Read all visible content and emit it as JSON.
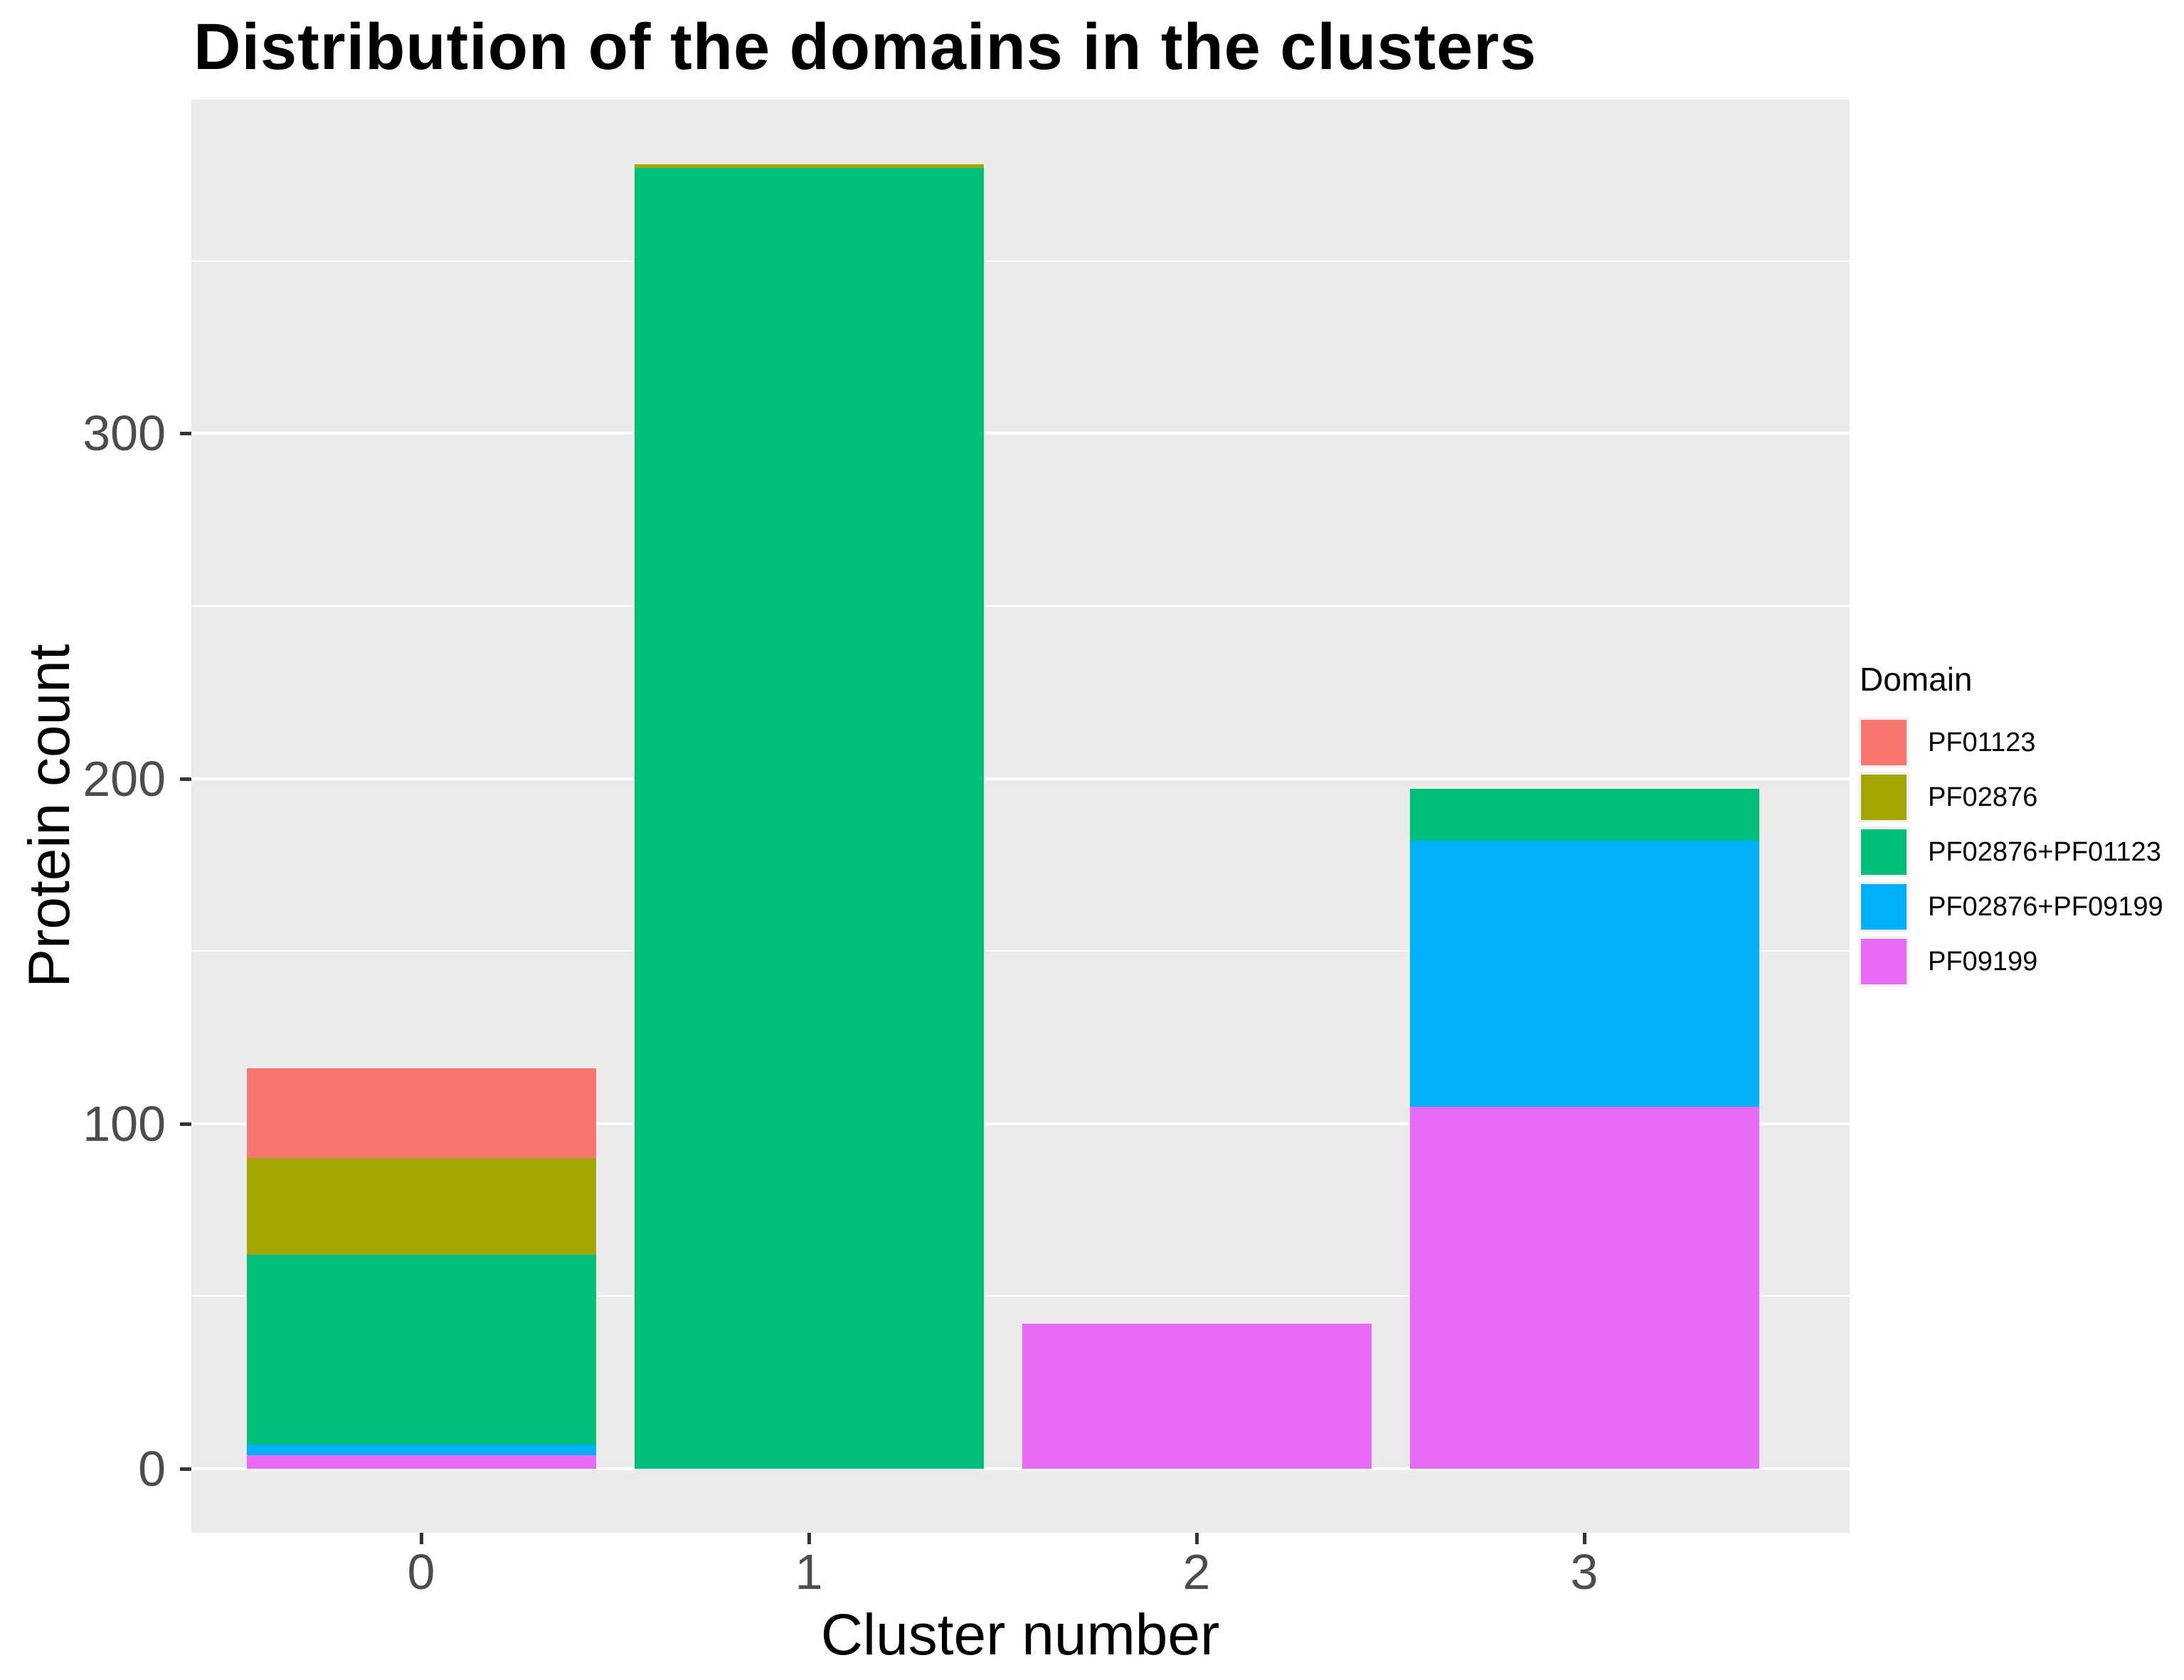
{
  "title": "Distribution of the domains in the clusters",
  "axes": {
    "x_label": "Cluster number",
    "y_label": "Protein count",
    "x_tick_labels": [
      "0",
      "1",
      "2",
      "3"
    ],
    "y_tick_labels": [
      "0",
      "100",
      "200",
      "300"
    ]
  },
  "legend": {
    "title": "Domain",
    "entries": [
      {
        "label": "PF01123",
        "color": "#F8766D"
      },
      {
        "label": "PF02876",
        "color": "#A3A500"
      },
      {
        "label": "PF02876+PF01123",
        "color": "#00BF7D"
      },
      {
        "label": "PF02876+PF09199",
        "color": "#00B0F6"
      },
      {
        "label": "PF09199",
        "color": "#E76BF3"
      }
    ],
    "position": "right"
  },
  "colors": {
    "background": "#FFFFFF",
    "panel_background": "#EBEBEB",
    "gridline": "#FFFFFF",
    "tick_label_text": "#4D4D4D",
    "axis_title_text": "#000000",
    "tick_mark": "#333333",
    "legend_key_background": "#F2F2F2"
  },
  "chart_data": {
    "type": "bar",
    "stacked": true,
    "stack_order": "first listed series appears on top of the stack",
    "title": "Distribution of the domains in the clusters",
    "xlabel": "Cluster number",
    "ylabel": "Protein count",
    "categories": [
      "0",
      "1",
      "2",
      "3"
    ],
    "series": [
      {
        "name": "PF01123",
        "color": "#F8766D",
        "values": [
          26,
          0,
          0,
          0
        ]
      },
      {
        "name": "PF02876",
        "color": "#A3A500",
        "values": [
          28,
          1,
          0,
          0
        ]
      },
      {
        "name": "PF02876+PF01123",
        "color": "#00BF7D",
        "values": [
          55,
          377,
          0,
          15
        ]
      },
      {
        "name": "PF02876+PF09199",
        "color": "#00B0F6",
        "values": [
          3,
          0,
          0,
          77
        ]
      },
      {
        "name": "PF09199",
        "color": "#E76BF3",
        "values": [
          4,
          0,
          42,
          105
        ]
      }
    ],
    "totals": [
      116,
      378,
      42,
      197
    ],
    "y_ticks": [
      0,
      100,
      200,
      300
    ],
    "y_minor_ticks": [
      50,
      150,
      250,
      350
    ],
    "ylim": [
      -18.9,
      396.9
    ],
    "grid": "white major and minor horizontal gridlines on grey panel",
    "legend_position": "right"
  }
}
